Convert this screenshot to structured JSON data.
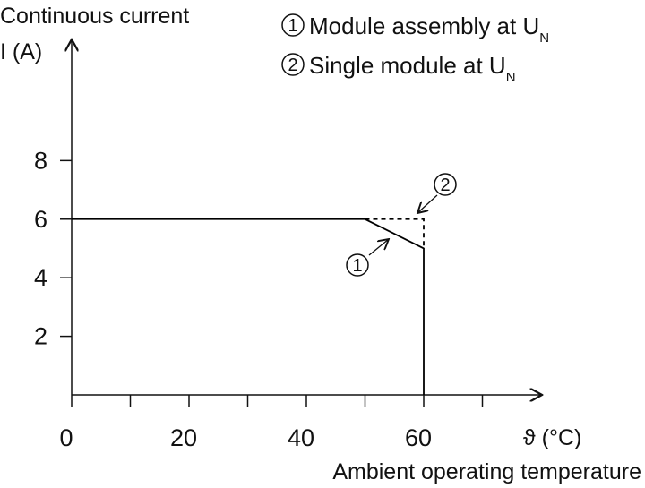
{
  "chart_data": {
    "type": "line",
    "y_label": [
      "Continuous current",
      "I (A)"
    ],
    "x_label": "ϑ (°C)",
    "x_title": "Ambient operating temperature",
    "xlim": [
      0,
      80
    ],
    "ylim": [
      0,
      12.2
    ],
    "xticks": [
      0,
      20,
      40,
      60
    ],
    "xminorticks": [
      10,
      30,
      50,
      70
    ],
    "yticks": [
      2,
      4,
      6,
      8
    ],
    "series": [
      {
        "name": "Module assembly at U",
        "name_sub": "N",
        "marker": "1",
        "color": "#000000",
        "dashed": false,
        "x": [
          0,
          50,
          60,
          60
        ],
        "values": [
          6,
          6,
          5,
          0
        ]
      },
      {
        "name": "Single module at U",
        "name_sub": "N",
        "marker": "2",
        "color": "#000000",
        "dashed": true,
        "x": [
          50,
          60,
          60
        ],
        "values": [
          6,
          6,
          5
        ]
      }
    ]
  }
}
